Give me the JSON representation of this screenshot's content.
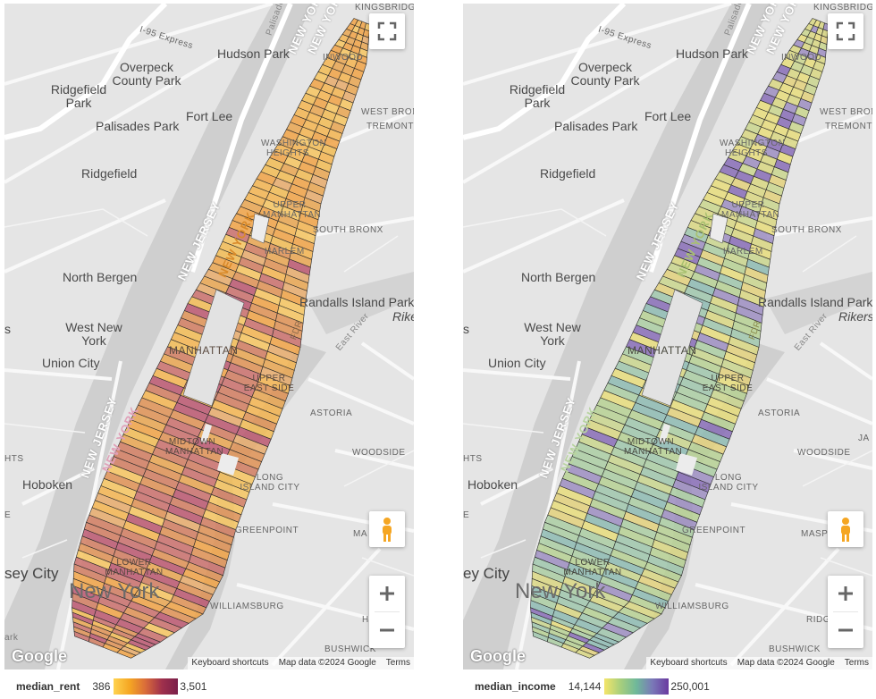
{
  "maps": [
    {
      "id": "rent",
      "variable": "median_rent",
      "min_label": "386",
      "max_label": "3,501",
      "gradient": [
        "#ffd34f",
        "#f5a623",
        "#d96b3a",
        "#a0304c",
        "#7a1f4a"
      ],
      "fill_colors": [
        "#f4b24a",
        "#f0a040",
        "#e8a24a",
        "#de8e4e",
        "#d0785a",
        "#c86a66",
        "#b8506a",
        "#f7c35a",
        "#f2b94e",
        "#e6a866"
      ]
    },
    {
      "id": "income",
      "variable": "median_income",
      "min_label": "14,144",
      "max_label": "250,001",
      "gradient": [
        "#f4e56a",
        "#a8cf7c",
        "#6fb89a",
        "#7a78b8",
        "#6a3aa0"
      ],
      "fill_colors": [
        "#e6dc78",
        "#d8d67e",
        "#c8d48a",
        "#b4d090",
        "#a8cca0",
        "#9cc4aa",
        "#8ab8b0",
        "#9a8ac0",
        "#8468b4",
        "#e2d078"
      ]
    }
  ],
  "labels": {
    "kingsbridge": "KINGSBRIDGE",
    "i95": "I-95 Express",
    "hudson_park": "Hudson Park",
    "inwood": "INWOOD",
    "overpeck": "Overpeck County Park",
    "ridgefield_park": "Ridgefield Park",
    "fort_lee": "Fort Lee",
    "west_bronx": "WEST BRONX",
    "tremont": "TREMONT",
    "palisades_park": "Palisades Park",
    "washington_heights": "WASHINGTON HEIGHTS",
    "ridgefield": "Ridgefield",
    "upper_manhattan": "UPPER MANHATTAN",
    "south_bronx": "SOUTH BRONX",
    "new_jersey_1": "NEW JERSEY",
    "new_york_1": "NEW YORK",
    "harlem": "HARLEM",
    "north_bergen": "North Bergen",
    "randalls": "Randalls Island Park",
    "rikers": "Rikers",
    "west_new_york": "West New York",
    "manhattan": "MANHATTAN",
    "union_city": "Union City",
    "upper_east_side": "UPPER EAST SIDE",
    "astoria": "ASTORIA",
    "new_jersey_2": "NEW JERSEY",
    "new_york_2": "NEW YORK",
    "midtown": "MIDTOWN MANHATTAN",
    "hts": "HTS",
    "woodside": "WOODSIDE",
    "hoboken": "Hoboken",
    "long_island_city": "LONG ISLAND CITY",
    "greenpoint": "GREENPOINT",
    "maspeth": "MASP",
    "jersey_city": "sey City",
    "jersey_city_2": "ey City",
    "lower_manhattan": "LOWER MANHATTAN",
    "new_york_city": "New York",
    "williamsburg": "WILLIAMSBURG",
    "ridge": "RIDG",
    "bushwick": "BUSHWICK",
    "park": "ark",
    "e": "E",
    "ja": "JA",
    "h": "H",
    "ma": "MA",
    "s_left": "s",
    "east_river": "East River",
    "fdr": "FDR",
    "palisade": "Palisade",
    "new_york_road": "NEW YORK",
    "new_jersey_road": "NEW J"
  },
  "attribution": {
    "google": "Google",
    "shortcuts": "Keyboard shortcuts",
    "mapdata": "Map data ©2024 Google",
    "terms": "Terms"
  },
  "controls": {
    "fullscreen_icon": "fullscreen-icon",
    "pegman_icon": "pegman-icon",
    "zoom_in_icon": "plus-icon",
    "zoom_out_icon": "minus-icon"
  }
}
